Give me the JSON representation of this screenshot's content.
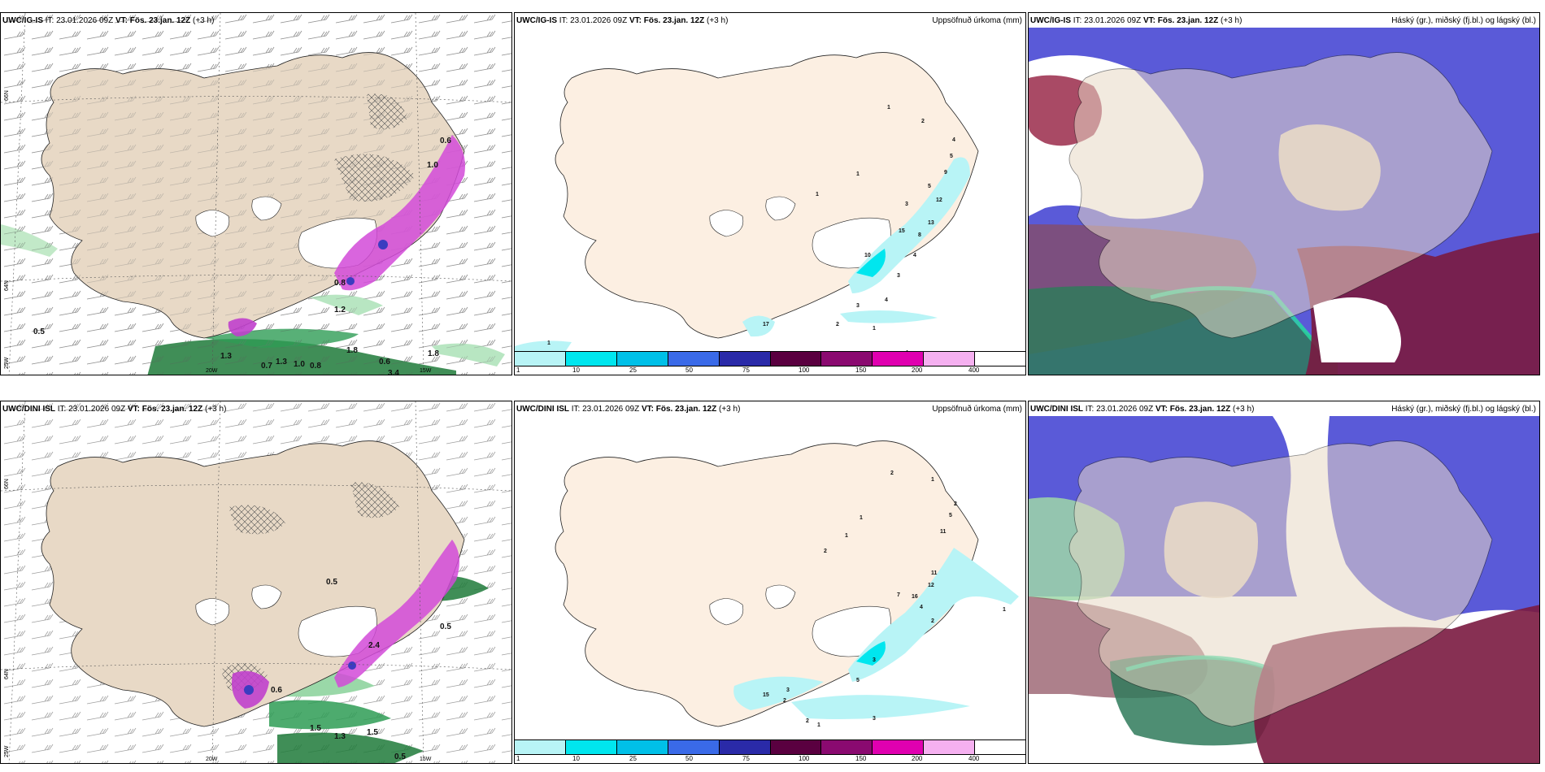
{
  "common": {
    "it_label": "IT:",
    "it_value": "23.01.2026 09Z",
    "vt_label": "VT:",
    "vt_value": "Fös. 23.jan. 12Z",
    "lead": "(+3 h)"
  },
  "rows": [
    {
      "model": "UWC/IG-IS"
    },
    {
      "model": "UWC/DINI ISL"
    }
  ],
  "precip_title": "Uppsöfnuð úrkoma (mm)",
  "cloud_title": "Háský (gr.), miðský (fj.bl.) og lágský (bl.)",
  "colorbar": {
    "labels": [
      "1",
      "10",
      "25",
      "50",
      "75",
      "100",
      "150",
      "200",
      "400"
    ],
    "colors": [
      "#b8f4f6",
      "#00e6ee",
      "#00c0e8",
      "#3a6ae8",
      "#2a2aa8",
      "#5a0040",
      "#8a0a70",
      "#e000b0",
      "#f5b0f0"
    ]
  },
  "grid_labels": {
    "lat_66": "66N",
    "lat_64": "64N",
    "lon_25": "25W",
    "lon_20": "20W",
    "lon_15": "15W"
  },
  "wind_numbers_top": [
    "0.5",
    "1.3",
    "0.7",
    "1.3",
    "1.0",
    "0.8",
    "1.8",
    "0.6",
    "3.4",
    "1.8",
    "1.2",
    "0.6",
    "1.0",
    "0.8"
  ],
  "wind_numbers_bottom": [
    "0.6",
    "0.5",
    "1.5",
    "1.3",
    "1.5",
    "0.5",
    "2.4",
    "0.5"
  ],
  "precip_numbers_top": [
    "1",
    "2",
    "4",
    "5",
    "9",
    "1",
    "5",
    "12",
    "13",
    "3",
    "15",
    "8",
    "10",
    "4",
    "3",
    "17",
    "2",
    "1",
    "3",
    "4",
    "4",
    "1",
    "1"
  ],
  "precip_numbers_bottom": [
    "2",
    "1",
    "2",
    "5",
    "1",
    "11",
    "1",
    "2",
    "11",
    "12",
    "7",
    "16",
    "4",
    "2",
    "3",
    "15",
    "2",
    "5",
    "3",
    "2",
    "1",
    "3",
    "1"
  ]
}
